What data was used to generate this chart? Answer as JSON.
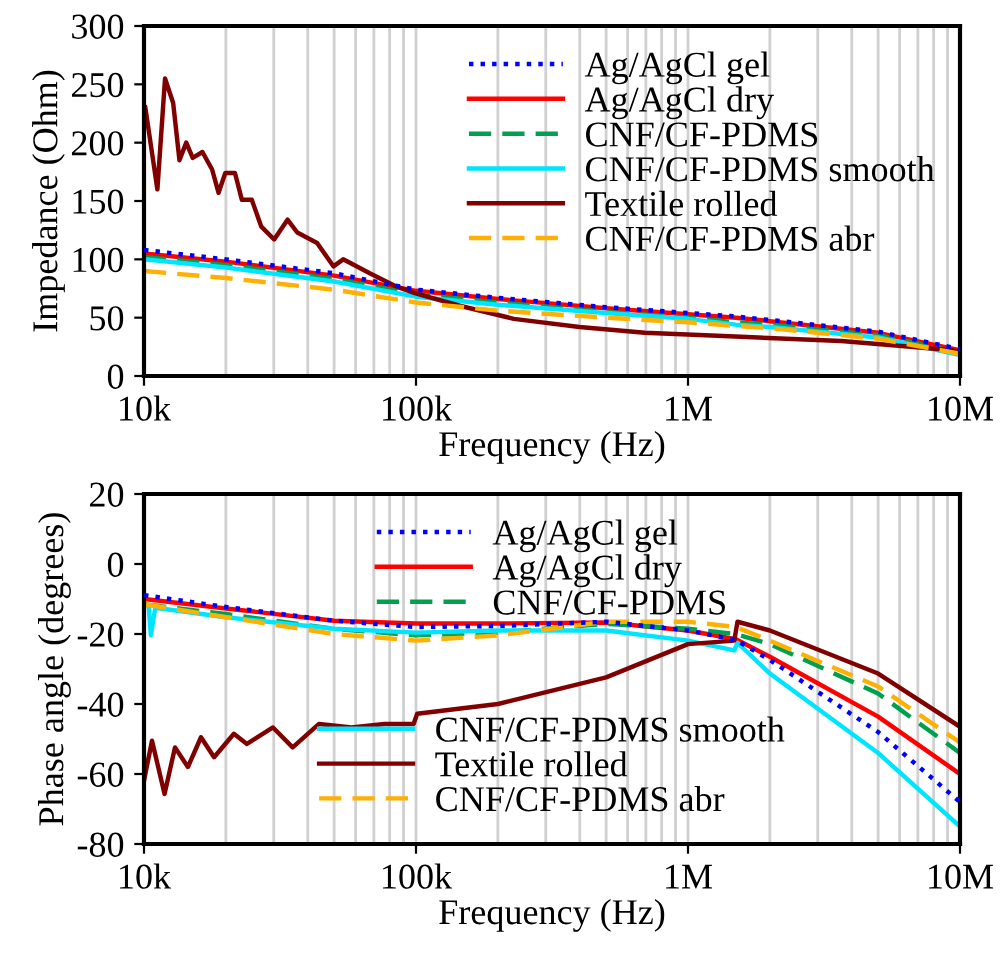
{
  "chart_data": [
    {
      "type": "line",
      "xlabel": "Frequency (Hz)",
      "ylabel": "Impedance (Ohm)",
      "log": "x",
      "grid": "x",
      "legend": "top right",
      "marker": "none",
      "xlim": [
        10000,
        10000000
      ],
      "xticks": [
        {
          "value": 10000,
          "label": "10k"
        },
        {
          "value": 100000,
          "label": "100k"
        },
        {
          "value": 1000000,
          "label": "1M"
        },
        {
          "value": 10000000,
          "label": "10M"
        }
      ],
      "ylim": [
        0,
        300
      ],
      "yticks": [
        0,
        50,
        100,
        150,
        200,
        250,
        300
      ],
      "x": [
        10000,
        20000,
        50000,
        100000,
        200000,
        500000,
        1000000,
        1500000,
        2000000,
        5000000,
        10000000
      ],
      "series": [
        {
          "name": "Ag/AgCl gel",
          "color": "#0000ff",
          "line_style": "dotted",
          "values": [
            108,
            100,
            88,
            74,
            67,
            59,
            54,
            51,
            48,
            38,
            23
          ]
        },
        {
          "name": "Ag/AgCl dry",
          "color": "#ff0000",
          "line_style": "solid",
          "values": [
            105,
            98,
            86,
            73,
            66,
            58,
            53,
            50,
            47,
            37,
            22
          ]
        },
        {
          "name": "CNF/CF-PDMS",
          "color": "#00a050",
          "line_style": "dashed",
          "values": [
            102,
            95,
            83,
            70,
            63,
            55,
            50,
            46,
            44,
            35,
            20
          ]
        },
        {
          "name": "CNF/CF-PDMS smooth",
          "color": "#00e5ff",
          "line_style": "solid",
          "values": [
            100,
            93,
            81,
            68,
            61,
            54,
            49,
            44,
            42,
            33,
            18
          ]
        },
        {
          "name": "Textile rolled",
          "color": "#800000",
          "line_style": "solid",
          "x": [
            10000,
            10100,
            11200,
            11950,
            12800,
            13500,
            14300,
            15100,
            16400,
            17800,
            18800,
            19900,
            21600,
            22900,
            24900,
            27000,
            30100,
            33700,
            36600,
            43300,
            49700,
            54000,
            67600,
            84200,
            99000,
            146000,
            229000,
            399000,
            694000,
            1420000,
            3660000,
            9400000,
            10000000
          ],
          "values": [
            230,
            231,
            160,
            255,
            234,
            185,
            200,
            187,
            192,
            177,
            157,
            174,
            174,
            151,
            151,
            128,
            117,
            134,
            123,
            114,
            94,
            100,
            88,
            77,
            71,
            60,
            49,
            42,
            37,
            34,
            30,
            22,
            20
          ]
        },
        {
          "name": "CNF/CF-PDMS abr",
          "color": "#ffb000",
          "line_style": "dashed",
          "values": [
            90,
            84,
            74,
            63,
            56,
            50,
            46,
            43,
            41,
            32,
            19
          ]
        }
      ]
    },
    {
      "type": "line",
      "xlabel": "Frequency (Hz)",
      "ylabel": "Phase angle (degrees)",
      "log": "x",
      "grid": "x",
      "legend": "center",
      "marker": "none",
      "xlim": [
        10000,
        10000000
      ],
      "xticks": [
        {
          "value": 10000,
          "label": "10k"
        },
        {
          "value": 100000,
          "label": "100k"
        },
        {
          "value": 1000000,
          "label": "1M"
        },
        {
          "value": 10000000,
          "label": "10M"
        }
      ],
      "ylim": [
        -80,
        20
      ],
      "yticks": [
        -80,
        -60,
        -40,
        -20,
        0,
        20
      ],
      "x": [
        10000,
        20000,
        50000,
        100000,
        200000,
        500000,
        1000000,
        1500000,
        2000000,
        5000000,
        10000000
      ],
      "series": [
        {
          "name": "Ag/AgCl gel",
          "color": "#0000ff",
          "line_style": "dotted",
          "values": [
            -8.9,
            -12.3,
            -16.2,
            -18,
            -17.7,
            -16.5,
            -19,
            -21.7,
            -27.4,
            -48,
            -68
          ]
        },
        {
          "name": "Ag/AgCl dry",
          "color": "#ff0000",
          "line_style": "solid",
          "values": [
            -10,
            -12.7,
            -16.2,
            -17,
            -17,
            -16.7,
            -19,
            -21.5,
            -26.5,
            -43.6,
            -60
          ]
        },
        {
          "name": "CNF/CF-PDMS",
          "color": "#00a050",
          "line_style": "dashed",
          "values": [
            -11.5,
            -14.3,
            -18.5,
            -20.4,
            -19.6,
            -17.1,
            -18.5,
            -20,
            -22.9,
            -37,
            -54
          ]
        },
        {
          "name": "CNF/CF-PDMS smooth",
          "color": "#00e5ff",
          "line_style": "solid",
          "x": [
            10000,
            10400,
            10600,
            11000,
            20000,
            50000,
            100000,
            200000,
            500000,
            1000000,
            1480000,
            1520000,
            2000000,
            5000000,
            10000000
          ],
          "values": [
            -11.5,
            -12,
            -20.4,
            -12.5,
            -15.2,
            -18.5,
            -19.6,
            -19,
            -19,
            -21.9,
            -24.7,
            -22.5,
            -31.3,
            -54,
            -75
          ]
        },
        {
          "name": "Textile rolled",
          "color": "#800000",
          "line_style": "solid",
          "x": [
            10000,
            10700,
            11900,
            13000,
            14500,
            16200,
            18100,
            21400,
            23900,
            29800,
            35200,
            44000,
            58000,
            76600,
            98000,
            101000,
            200000,
            500000,
            1000000,
            1480000,
            1520000,
            2000000,
            5000000,
            10000000
          ],
          "values": [
            -61.9,
            -50.5,
            -65.7,
            -52.4,
            -58,
            -49.5,
            -55.2,
            -48.5,
            -51.4,
            -46.7,
            -52.4,
            -45.7,
            -46.7,
            -45.7,
            -45.7,
            -42.8,
            -40,
            -32.4,
            -22.9,
            -21.9,
            -16.5,
            -19,
            -31.3,
            -46.5
          ]
        },
        {
          "name": "CNF/CF-PDMS abr",
          "color": "#ffb000",
          "line_style": "dashed",
          "values": [
            -11.5,
            -15.2,
            -20,
            -21.9,
            -20.4,
            -16.5,
            -16.5,
            -18,
            -21.9,
            -35,
            -51
          ]
        }
      ]
    }
  ]
}
